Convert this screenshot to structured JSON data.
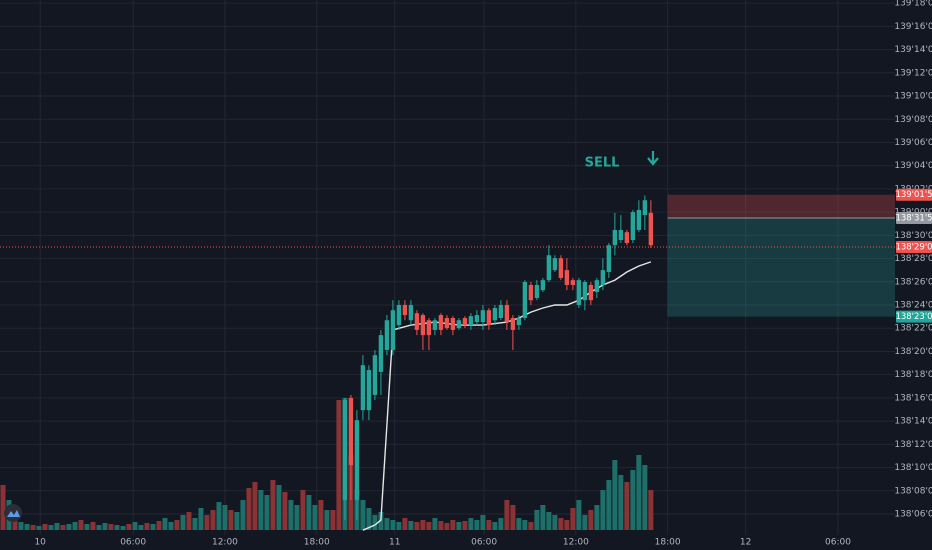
{
  "chart_data": {
    "type": "candlestick",
    "xlim": [
      -0.5,
      148.7
    ],
    "xticks": [
      {
        "value": 6.2,
        "label": "10"
      },
      {
        "value": 21.7,
        "label": "06:00"
      },
      {
        "value": 37,
        "label": "12:00"
      },
      {
        "value": 52.3,
        "label": "18:00"
      },
      {
        "value": 65.3,
        "label": "11"
      },
      {
        "value": 80.2,
        "label": "06:00"
      },
      {
        "value": 95.5,
        "label": "12:00"
      },
      {
        "value": 110.8,
        "label": "18:00"
      },
      {
        "value": 123.8,
        "label": "12"
      },
      {
        "value": 139.2,
        "label": "06:00"
      }
    ],
    "ylim": [
      138.131,
      139.571
    ],
    "yticks": [
      {
        "value": 138.1875,
        "label": "138'06'0"
      },
      {
        "value": 138.25,
        "label": "138'08'0"
      },
      {
        "value": 138.3125,
        "label": "138'10'0"
      },
      {
        "value": 138.375,
        "label": "138'12'0"
      },
      {
        "value": 138.4375,
        "label": "138'14'0"
      },
      {
        "value": 138.5,
        "label": "138'16'0"
      },
      {
        "value": 138.5625,
        "label": "138'18'0"
      },
      {
        "value": 138.625,
        "label": "138'20'0"
      },
      {
        "value": 138.6875,
        "label": "138'22'0"
      },
      {
        "value": 138.75,
        "label": "138'24'0"
      },
      {
        "value": 138.8125,
        "label": "138'26'0"
      },
      {
        "value": 138.875,
        "label": "138'28'0"
      },
      {
        "value": 138.9375,
        "label": "138'30'0"
      },
      {
        "value": 139.0,
        "label": "139'00'0"
      },
      {
        "value": 139.0625,
        "label": "139'02'0"
      },
      {
        "value": 139.125,
        "label": "139'04'0"
      },
      {
        "value": 139.1875,
        "label": "139'06'0"
      },
      {
        "value": 139.25,
        "label": "139'08'0"
      },
      {
        "value": 139.3125,
        "label": "139'10'0"
      },
      {
        "value": 139.375,
        "label": "139'12'0"
      },
      {
        "value": 139.4375,
        "label": "139'14'0"
      },
      {
        "value": 139.5,
        "label": "139'16'0"
      },
      {
        "value": 139.5625,
        "label": "139'18'0"
      }
    ],
    "grid": true,
    "candles": {
      "up_color": "#26a69a",
      "down_color": "#ef5350",
      "x": [
        57,
        58,
        59,
        60,
        61,
        62,
        63,
        64,
        65,
        66,
        67,
        68,
        69,
        70,
        71,
        72,
        73,
        74,
        75,
        76,
        77,
        78,
        79,
        80,
        81,
        82,
        83,
        84,
        85,
        86,
        87,
        88,
        89,
        90,
        91,
        92,
        93,
        94,
        95,
        96,
        97,
        98,
        99,
        100,
        101,
        102,
        103,
        104,
        105,
        106,
        107,
        108
      ],
      "open": [
        138.225,
        138.5,
        138.225,
        138.467,
        138.467,
        138.508,
        138.57,
        138.629,
        138.629,
        138.696,
        138.75,
        138.709,
        138.728,
        138.723,
        138.709,
        138.683,
        138.723,
        138.715,
        138.715,
        138.688,
        138.715,
        138.696,
        138.704,
        138.704,
        138.736,
        138.709,
        138.715,
        138.75,
        138.715,
        138.696,
        138.715,
        138.804,
        138.769,
        138.79,
        138.817,
        138.844,
        138.876,
        138.844,
        138.817,
        138.75,
        138.763,
        138.804,
        138.785,
        138.804,
        138.839,
        138.911,
        138.925,
        138.946,
        138.925,
        138.952,
        138.992,
        138.998
      ],
      "high": [
        138.5,
        138.508,
        138.467,
        138.615,
        138.588,
        138.629,
        138.683,
        138.723,
        138.763,
        138.763,
        138.763,
        138.763,
        138.736,
        138.728,
        138.715,
        138.715,
        138.728,
        138.723,
        138.72,
        138.715,
        138.72,
        138.728,
        138.736,
        138.75,
        138.742,
        138.75,
        138.763,
        138.763,
        138.723,
        138.723,
        138.817,
        138.812,
        138.817,
        138.823,
        138.911,
        138.884,
        138.884,
        138.876,
        138.823,
        138.823,
        138.817,
        138.812,
        138.823,
        138.876,
        138.917,
        138.998,
        138.992,
        138.952,
        139.006,
        139.032,
        139.045,
        139.032
      ],
      "low": [
        138.171,
        138.225,
        138.171,
        138.44,
        138.44,
        138.494,
        138.508,
        138.615,
        138.615,
        138.683,
        138.709,
        138.696,
        138.669,
        138.629,
        138.629,
        138.669,
        138.669,
        138.683,
        138.669,
        138.683,
        138.688,
        138.683,
        138.696,
        138.683,
        138.683,
        138.696,
        138.709,
        138.683,
        138.629,
        138.683,
        138.709,
        138.75,
        138.763,
        138.785,
        138.812,
        138.839,
        138.817,
        138.79,
        138.79,
        138.742,
        138.736,
        138.75,
        138.769,
        138.79,
        138.823,
        138.884,
        138.917,
        138.911,
        138.917,
        138.946,
        138.952,
        138.904
      ],
      "close": [
        138.494,
        138.319,
        138.44,
        138.588,
        138.575,
        138.615,
        138.669,
        138.709,
        138.736,
        138.75,
        138.723,
        138.75,
        138.683,
        138.669,
        138.669,
        138.709,
        138.683,
        138.688,
        138.683,
        138.709,
        138.696,
        138.72,
        138.723,
        138.736,
        138.696,
        138.742,
        138.75,
        138.704,
        138.683,
        138.715,
        138.812,
        138.763,
        138.804,
        138.817,
        138.884,
        138.876,
        138.823,
        138.804,
        138.804,
        138.817,
        138.812,
        138.763,
        138.817,
        138.844,
        138.911,
        138.952,
        138.952,
        138.917,
        139.0,
        139.006,
        139.032,
        138.911
      ]
    },
    "volume": {
      "ylim": [
        0,
        140
      ],
      "up_color": "#1e6f69",
      "down_color": "#8a3335",
      "x": [
        0,
        1,
        2,
        3,
        4,
        5,
        6,
        7,
        8,
        9,
        10,
        11,
        12,
        13,
        14,
        15,
        16,
        17,
        18,
        19,
        20,
        21,
        22,
        23,
        24,
        25,
        26,
        27,
        28,
        29,
        30,
        31,
        32,
        33,
        34,
        35,
        36,
        37,
        38,
        39,
        40,
        41,
        42,
        43,
        44,
        45,
        46,
        47,
        48,
        49,
        50,
        51,
        52,
        53,
        54,
        55,
        56,
        57,
        58,
        59,
        60,
        61,
        62,
        63,
        64,
        65,
        66,
        67,
        68,
        69,
        70,
        71,
        72,
        73,
        74,
        75,
        76,
        77,
        78,
        79,
        80,
        81,
        82,
        83,
        84,
        85,
        86,
        87,
        88,
        89,
        90,
        91,
        92,
        93,
        94,
        95,
        96,
        97,
        98,
        99,
        100,
        101,
        102,
        103,
        104,
        105,
        106,
        107,
        108
      ],
      "values": [
        45,
        30,
        12,
        8,
        6,
        5,
        4,
        6,
        5,
        7,
        5,
        6,
        8,
        10,
        6,
        8,
        5,
        7,
        6,
        5,
        4,
        6,
        8,
        5,
        7,
        6,
        9,
        12,
        8,
        10,
        15,
        18,
        12,
        22,
        15,
        20,
        28,
        25,
        20,
        18,
        30,
        42,
        48,
        40,
        35,
        50,
        45,
        38,
        30,
        25,
        40,
        35,
        25,
        30,
        20,
        20,
        130,
        132,
        75,
        40,
        30,
        22,
        15,
        18,
        12,
        10,
        8,
        12,
        9,
        8,
        10,
        8,
        12,
        9,
        7,
        10,
        8,
        9,
        12,
        10,
        15,
        10,
        8,
        12,
        30,
        25,
        12,
        10,
        8,
        20,
        25,
        18,
        15,
        12,
        10,
        22,
        30,
        15,
        20,
        25,
        40,
        50,
        70,
        55,
        48,
        60,
        75,
        65,
        40
      ],
      "directions": [
        "down",
        "up",
        "down",
        "up",
        "up",
        "down",
        "up",
        "down",
        "up",
        "up",
        "down",
        "up",
        "up",
        "down",
        "up",
        "down",
        "up",
        "up",
        "down",
        "up",
        "up",
        "down",
        "up",
        "up",
        "down",
        "up",
        "down",
        "up",
        "up",
        "down",
        "up",
        "down",
        "up",
        "up",
        "down",
        "down",
        "up",
        "up",
        "down",
        "up",
        "up",
        "down",
        "down",
        "up",
        "up",
        "down",
        "up",
        "down",
        "up",
        "up",
        "down",
        "up",
        "up",
        "down",
        "up",
        "down",
        "down",
        "up",
        "down",
        "up",
        "up",
        "up",
        "up",
        "up",
        "up",
        "up",
        "up",
        "down",
        "up",
        "down",
        "down",
        "down",
        "up",
        "down",
        "down",
        "down",
        "up",
        "down",
        "up",
        "up",
        "up",
        "down",
        "up",
        "up",
        "down",
        "down",
        "up",
        "up",
        "down",
        "up",
        "up",
        "up",
        "up",
        "down",
        "down",
        "down",
        "up",
        "up",
        "down",
        "up",
        "up",
        "up",
        "up",
        "up",
        "down",
        "up",
        "up",
        "up",
        "down"
      ]
    },
    "ma": {
      "color": "#e6e6e6",
      "x": [
        60,
        62,
        63,
        65,
        68,
        72,
        76,
        80,
        84,
        86,
        88,
        90,
        92,
        94,
        96,
        98,
        100,
        102,
        104,
        106,
        108
      ],
      "values": [
        138.144,
        138.158,
        138.171,
        138.683,
        138.696,
        138.704,
        138.696,
        138.696,
        138.704,
        138.715,
        138.731,
        138.742,
        138.75,
        138.75,
        138.763,
        138.785,
        138.804,
        138.817,
        138.839,
        138.855,
        138.866
      ]
    },
    "last_price": {
      "value": 138.90625,
      "label": "138'29'0",
      "color": "#ef5350"
    },
    "position": {
      "x_start": 110.8,
      "stop": {
        "value": 139.046875,
        "label": "139'01'5",
        "color": "#ef5350"
      },
      "entry": {
        "value": 138.984375,
        "label": "138'31'5",
        "color": "#9598a1"
      },
      "target": {
        "value": 138.71875,
        "label": "138'23'0",
        "color": "#22a69a"
      }
    },
    "annotation": "SELL"
  }
}
